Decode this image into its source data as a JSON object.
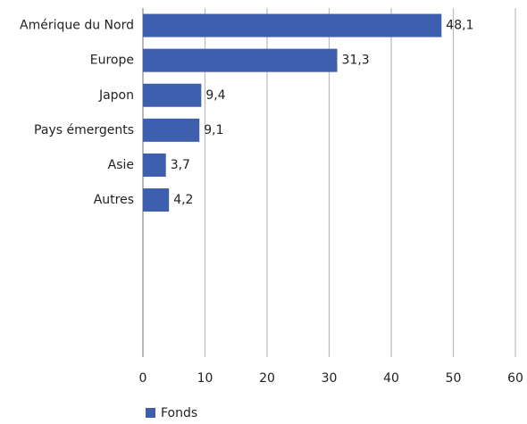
{
  "chart_data": {
    "type": "bar",
    "orientation": "horizontal",
    "categories": [
      "Amérique du Nord",
      "Europe",
      "Japon",
      "Pays émergents",
      "Asie",
      "Autres",
      null,
      null,
      null,
      null
    ],
    "series": [
      {
        "name": "Fonds",
        "color": "#3d5fad",
        "values": [
          48.1,
          31.3,
          9.4,
          9.1,
          3.7,
          4.2,
          null,
          null,
          null,
          null
        ],
        "value_labels": [
          "48,1",
          "31,3",
          "9,4",
          "9,1",
          "3,7",
          "4,2",
          null,
          null,
          null,
          null
        ]
      }
    ],
    "xlim": [
      0,
      60
    ],
    "xticks": [
      0,
      10,
      20,
      30,
      40,
      50,
      60
    ],
    "grid": true,
    "legend": "bottom"
  }
}
